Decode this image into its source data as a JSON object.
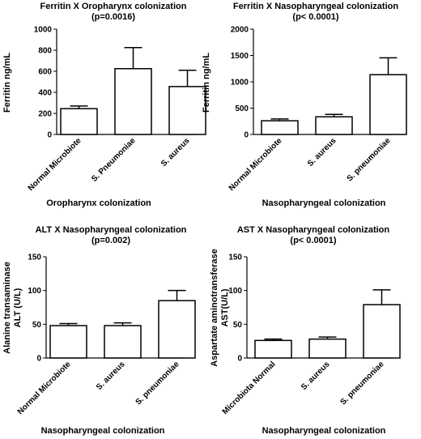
{
  "chart_data": [
    {
      "type": "bar",
      "title": "Ferritin X Oropharynx colonization",
      "subtitle": "(p=0.0016)",
      "xlabel": "Oropharynx colonization",
      "ylabel": "Ferritin ng/mL",
      "ylim": [
        0,
        1000
      ],
      "yticks": [
        0,
        200,
        400,
        600,
        800,
        1000
      ],
      "categories": [
        "Normal Microbiote",
        "S. Pneumoniae",
        "S. aureus"
      ],
      "values": [
        245,
        625,
        455
      ],
      "errors": [
        25,
        200,
        155
      ],
      "grid": false
    },
    {
      "type": "bar",
      "title": "Ferritin X Nasopharyngeal colonization",
      "subtitle": "(p< 0.0001)",
      "xlabel": "Nasopharyngeal colonization",
      "ylabel": "Ferritin ng/mL",
      "ylim": [
        0,
        2000
      ],
      "yticks": [
        0,
        500,
        1000,
        1500,
        2000
      ],
      "categories": [
        "Normal Microbiote",
        "S. aureus",
        "S. pneumoniae"
      ],
      "values": [
        260,
        335,
        1135
      ],
      "errors": [
        35,
        45,
        320
      ],
      "grid": false
    },
    {
      "type": "bar",
      "title": "ALT X Nasopharyngeal colonization",
      "subtitle": "(p=0.002)",
      "xlabel": "Nasopharyngeal colonization",
      "ylabel": [
        "Alanine transaminase",
        "ALT (U/L)"
      ],
      "ylim": [
        0,
        150
      ],
      "yticks": [
        0,
        50,
        100,
        150
      ],
      "categories": [
        "Normal Microbiote",
        "S. aureus",
        "S. pneumoniae"
      ],
      "values": [
        48,
        48,
        85
      ],
      "errors": [
        3,
        4,
        15
      ],
      "grid": false
    },
    {
      "type": "bar",
      "title": "AST X Nasopharyngeal colonization",
      "subtitle": "(p< 0.0001)",
      "xlabel": "Nasopharyngeal colonization",
      "ylabel": [
        "Aspartate aminotransferase",
        "AST(U/L)"
      ],
      "ylim": [
        0,
        150
      ],
      "yticks": [
        0,
        50,
        100,
        150
      ],
      "categories": [
        "Microbiota Normal",
        "S. aureus",
        "S. pneumoniae"
      ],
      "values": [
        26,
        28,
        79
      ],
      "errors": [
        2,
        3,
        22
      ],
      "grid": false
    }
  ]
}
